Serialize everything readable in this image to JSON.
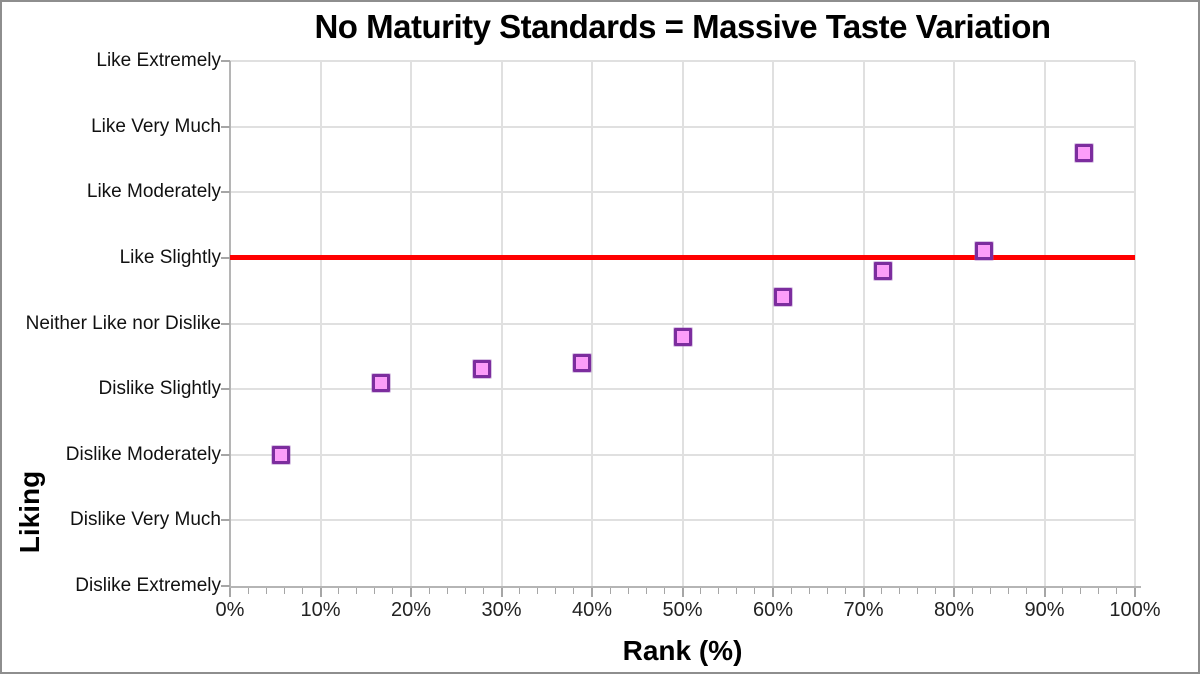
{
  "window": {
    "background": "#ffffff",
    "frame_border_color": "#8e8e8e"
  },
  "chart_data": {
    "type": "scatter",
    "title": "No Maturity Standards = Massive Taste Variation",
    "xlabel": "Rank (%)",
    "ylabel": "Liking",
    "xlim": [
      0,
      100
    ],
    "ylim": [
      1,
      9
    ],
    "grid": true,
    "legend": "none",
    "x_tick_values": [
      0,
      10,
      20,
      30,
      40,
      50,
      60,
      70,
      80,
      90,
      100
    ],
    "x_tick_labels": [
      "0%",
      "10%",
      "20%",
      "30%",
      "40%",
      "50%",
      "60%",
      "70%",
      "80%",
      "90%",
      "100%"
    ],
    "x_minor_tick_step": 2,
    "y_tick_values": [
      9,
      8,
      7,
      6,
      5,
      4,
      3,
      2,
      1
    ],
    "y_tick_labels_top_to_bottom": [
      "Like Extremely",
      "Like Very Much",
      "Like Moderately",
      "Like Slightly",
      "Neither Like nor Dislike",
      "Dislike Slightly",
      "Dislike Moderately",
      "Dislike Very Much",
      "Dislike Extremely"
    ],
    "reference_line": {
      "axis": "y",
      "value": 6,
      "at_label": "Like Slightly",
      "color": "#ff0000",
      "thickness_px": 5
    },
    "series": [
      {
        "name": "liking-by-rank",
        "marker": "square",
        "marker_fill": "#fc9df9",
        "marker_border": "#7c2d9e",
        "points": [
          {
            "x": 5.6,
            "y": 3.0
          },
          {
            "x": 16.7,
            "y": 4.1
          },
          {
            "x": 27.8,
            "y": 4.3
          },
          {
            "x": 38.9,
            "y": 4.4
          },
          {
            "x": 50.0,
            "y": 4.8
          },
          {
            "x": 61.1,
            "y": 5.4
          },
          {
            "x": 72.2,
            "y": 5.8
          },
          {
            "x": 83.3,
            "y": 6.1
          },
          {
            "x": 94.4,
            "y": 7.6
          }
        ]
      }
    ],
    "colors": {
      "gridline": "#e0e0e0",
      "axis_line": "#b5b5b5",
      "tick_mark": "#a6a6a6",
      "text": "#111111"
    }
  }
}
